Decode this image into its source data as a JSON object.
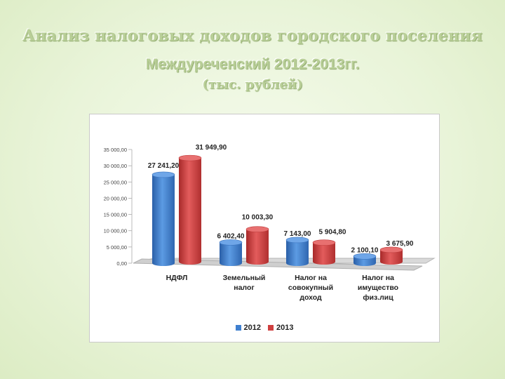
{
  "title_line1": "Анализ налоговых доходов городского поселения",
  "title_line2": "Междуреченский 2012-2013гг.",
  "title_line3": "(тыс. рублей)",
  "colors": {
    "s2012": "#3f7fcf",
    "s2013": "#cf3f3f"
  },
  "chart_data": {
    "type": "bar",
    "title": "",
    "xlabel": "",
    "ylabel": "",
    "ylim": [
      0,
      35000
    ],
    "yticks": [
      "0,00",
      "5 000,00",
      "10 000,00",
      "15 000,00",
      "20 000,00",
      "25 000,00",
      "30 000,00",
      "35 000,00"
    ],
    "categories": [
      [
        "НДФЛ"
      ],
      [
        "Земельный",
        "налог"
      ],
      [
        "Налог на",
        "совокупный",
        "доход"
      ],
      [
        "Налог на",
        "имущество",
        "физ.лиц"
      ]
    ],
    "series": [
      {
        "name": "2012",
        "values": [
          27241.2,
          6402.4,
          7143.0,
          2100.1
        ],
        "labels": [
          "27 241,20",
          "6 402,40",
          "7 143,00",
          "2 100,10"
        ]
      },
      {
        "name": "2013",
        "values": [
          31949.9,
          10003.3,
          5904.8,
          3675.9
        ],
        "labels": [
          "31 949,90",
          "10 003,30",
          "5 904,80",
          "3 675,90"
        ]
      }
    ],
    "legend_position": "bottom"
  }
}
